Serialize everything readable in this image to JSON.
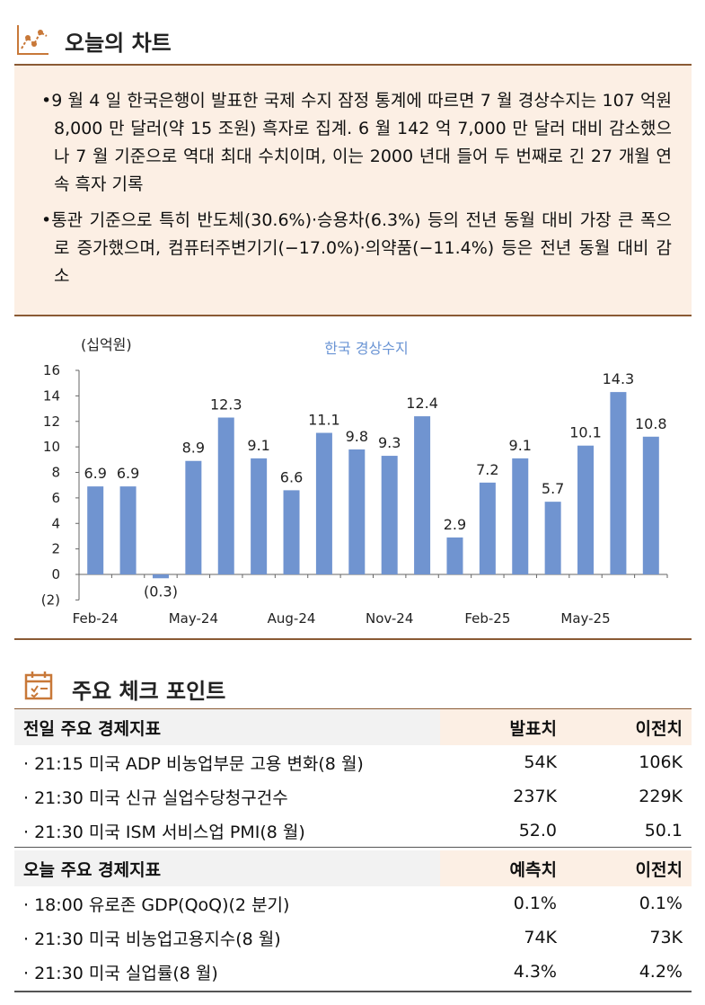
{
  "header": {
    "title": "오늘의 차트"
  },
  "bullets": [
    "•9 월 4 일 한국은행이 발표한 국제 수지 잠정 통계에 따르면 7 월 경상수지는 107 억원 8,000 만 달러(약 15 조원) 흑자로 집계. 6 월 142 억 7,000 만 달러 대비 감소했으나 7 월 기준으로 역대 최대 수치이며, 이는 2000 년대 들어 두 번째로 긴 27 개월 연속 흑자 기록",
    "•통관 기준으로 특히 반도체(30.6%)·승용차(6.3%) 등의 전년 동월 대비 가장 큰 폭으로 증가했으며, 컴퓨터주변기기(−17.0%)·의약품(−11.4%) 등은 전년 동월 대비 감소"
  ],
  "chart_data": {
    "type": "bar",
    "title": "한국 경상수지",
    "y_label": "(십억원)",
    "categories": [
      "Feb-24",
      null,
      null,
      "May-24",
      null,
      null,
      "Aug-24",
      null,
      null,
      "Nov-24",
      null,
      null,
      "Feb-25",
      null,
      null,
      "May-25",
      null,
      null
    ],
    "values": [
      6.9,
      6.9,
      -0.3,
      8.9,
      12.3,
      9.1,
      6.6,
      11.1,
      9.8,
      9.3,
      12.4,
      2.9,
      7.2,
      9.1,
      5.7,
      10.1,
      14.3,
      10.8
    ],
    "value_labels": [
      "6.9",
      "6.9",
      "(0.3)",
      "8.9",
      "12.3",
      "9.1",
      "6.6",
      "11.1",
      "9.8",
      "9.3",
      "12.4",
      "2.9",
      "7.2",
      "9.1",
      "5.7",
      "10.1",
      "14.3",
      "10.8"
    ],
    "color": "#7094d0",
    "ylim": [
      -2,
      16
    ],
    "yticks": [
      {
        "value": -2,
        "label": "(2)"
      },
      0,
      2,
      4,
      6,
      8,
      10,
      12,
      14,
      16
    ],
    "grid": false
  },
  "check_points": {
    "title": "주요 체크 포인트",
    "tables": [
      {
        "columns": [
          "전일 주요 경제지표",
          "발표치",
          "이전치"
        ],
        "rows": [
          [
            "· 21:15 미국 ADP 비농업부문 고용 변화(8 월)",
            "54K",
            "106K"
          ],
          [
            "· 21:30 미국 신규 실업수당청구건수",
            "237K",
            "229K"
          ],
          [
            "· 21:30 미국 ISM 서비스업 PMI(8 월)",
            "52.0",
            "50.1"
          ]
        ]
      },
      {
        "columns": [
          "오늘 주요 경제지표",
          "예측치",
          "이전치"
        ],
        "rows": [
          [
            "· 18:00 유로존 GDP(QoQ)(2 분기)",
            "0.1%",
            "0.1%"
          ],
          [
            "· 21:30 미국 비농업고용지수(8 월)",
            "74K",
            "73K"
          ],
          [
            "· 21:30 미국 실업률(8 월)",
            "4.3%",
            "4.2%"
          ]
        ]
      }
    ]
  }
}
